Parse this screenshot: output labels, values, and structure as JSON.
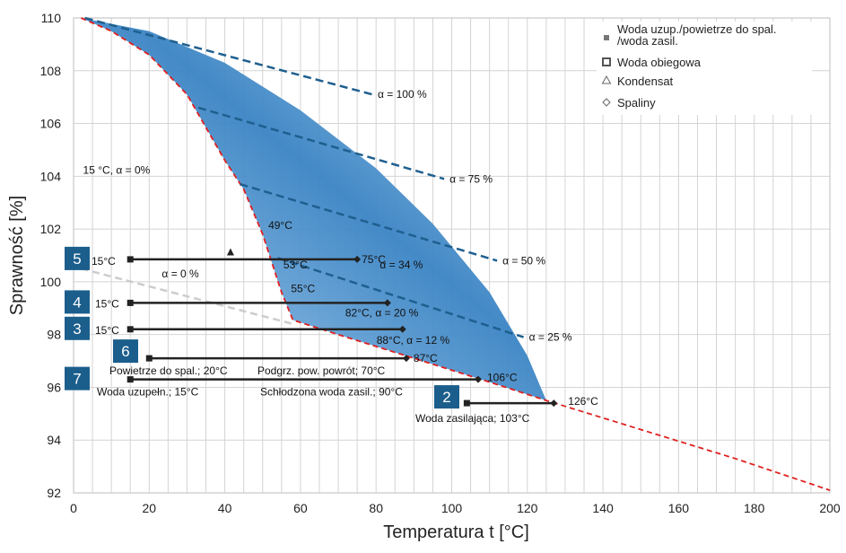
{
  "chart_data": {
    "type": "line",
    "title": "",
    "xlabel": "Temperatura t [°C]",
    "ylabel": "Sprawność [%]",
    "xlim": [
      0,
      200
    ],
    "ylim": [
      92,
      110
    ],
    "xticks": [
      0,
      20,
      40,
      60,
      80,
      100,
      120,
      140,
      160,
      180,
      200
    ],
    "yticks": [
      92,
      94,
      96,
      98,
      100,
      102,
      104,
      106,
      108,
      110
    ],
    "grid": true,
    "colors": {
      "boundary": "#e02020",
      "alpha_lines": "#1f5f8f",
      "band_light": "#aed2f0",
      "band_dark": "#3a84c4",
      "measure_lines": "#222222",
      "badge": "#1b5e8c",
      "zero_line": "#cccccc"
    },
    "legend": {
      "position": "top-right",
      "entries": [
        {
          "label": "Woda uzup./powietrze do spal.",
          "label2": "/woda zasil.",
          "marker": "square-small"
        },
        {
          "label": "Woda obiegowa",
          "marker": "square-ring"
        },
        {
          "label": "Kondensat",
          "marker": "triangle-open"
        },
        {
          "label": "Spaliny",
          "marker": "diamond-open"
        }
      ]
    },
    "boundary_curve": {
      "name": "",
      "x": [
        2,
        10,
        20,
        30,
        40,
        45,
        50,
        55,
        58,
        70,
        90,
        110,
        125,
        150,
        175,
        200
      ],
      "y": [
        110,
        109.5,
        108.6,
        107.1,
        104.6,
        103.5,
        101.8,
        99.6,
        98.55,
        98.0,
        97.1,
        96.2,
        95.5,
        94.4,
        93.3,
        92.1
      ]
    },
    "zero_alpha_line": {
      "label": "α = 0 %",
      "x": [
        2,
        58
      ],
      "y": [
        100.5,
        98.4
      ]
    },
    "band_upper_edge": {
      "x": [
        2,
        20,
        40,
        60,
        80,
        95,
        110,
        120,
        125
      ],
      "y": [
        110,
        109.5,
        108.3,
        106.5,
        104.3,
        102.2,
        99.6,
        97.2,
        95.5
      ]
    },
    "alpha_lines": [
      {
        "label": "α = 100 %",
        "x": [
          3,
          79
        ],
        "y": [
          110,
          107.1
        ]
      },
      {
        "label": "α = 75 %",
        "x": [
          33,
          98
        ],
        "y": [
          106.6,
          103.9
        ]
      },
      {
        "label": "α = 50 %",
        "x": [
          44,
          112
        ],
        "y": [
          103.7,
          100.8
        ]
      },
      {
        "label": "α = 25 %",
        "x": [
          54,
          119
        ],
        "y": [
          100.9,
          97.9
        ]
      }
    ],
    "measurements": [
      {
        "id": "5",
        "start_x": 15,
        "end_x": 75,
        "y": 100.85,
        "start_label": "15°C",
        "end_label": "75°C"
      },
      {
        "id": "4",
        "start_x": 15,
        "end_x": 83,
        "y": 99.2,
        "start_label": "15°C",
        "end_label": "82°C,  α = 20 %"
      },
      {
        "id": "3",
        "start_x": 15,
        "end_x": 87,
        "y": 98.2,
        "start_label": "15°C",
        "end_label": "88°C,  α = 12 %"
      },
      {
        "id": "6",
        "start_x": 20,
        "end_x": 88,
        "y": 97.1,
        "start_label": "Powietrze do spal.; 20°C",
        "end_label": "87°C",
        "mid_label": "Podgrz. pow. powrót; 70°C"
      },
      {
        "id": "7",
        "start_x": 15,
        "end_x": 107,
        "y": 96.3,
        "start_label": "Woda uzupełn.; 15°C",
        "end_label": "106°C",
        "mid_label": "Schłodzona woda zasil.; 90°C"
      },
      {
        "id": "2",
        "start_x": 104,
        "end_x": 127,
        "y": 95.4,
        "start_label": "Woda zasilająca; 103°C",
        "end_label": "126°C"
      }
    ],
    "triangle_marker": {
      "x": 41.5,
      "y": 101.1
    },
    "annotations": [
      {
        "text": "15 °C, α = 0%",
        "x": 2.5,
        "y": 104.1
      },
      {
        "text": "49°C",
        "x": 51.5,
        "y": 102.0
      },
      {
        "text": "α = 34 %",
        "x": 81,
        "y": 100.5
      },
      {
        "text": "53°C",
        "x": 55.5,
        "y": 100.5
      },
      {
        "text": "55°C",
        "x": 57.5,
        "y": 99.6
      }
    ]
  }
}
